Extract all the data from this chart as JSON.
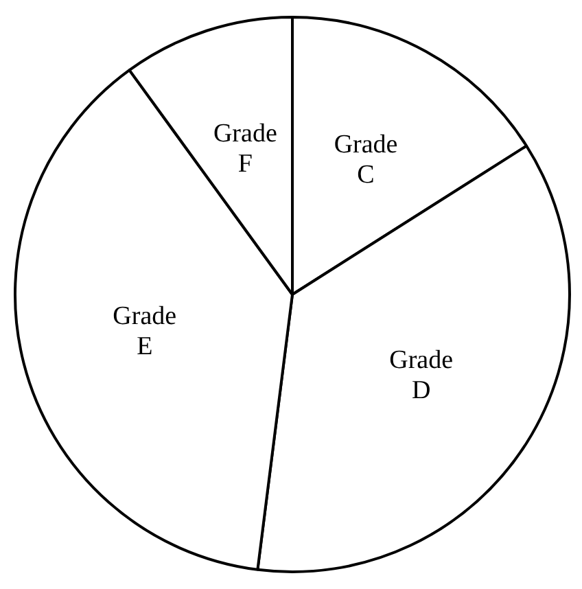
{
  "chart_data": {
    "type": "pie",
    "categories": [
      "Grade C",
      "Grade D",
      "Grade E",
      "Grade F"
    ],
    "values": [
      16,
      36,
      38,
      10
    ],
    "colors": [
      "#ffffff",
      "#ffffff",
      "#ffffff",
      "#ffffff"
    ],
    "legend": false
  }
}
